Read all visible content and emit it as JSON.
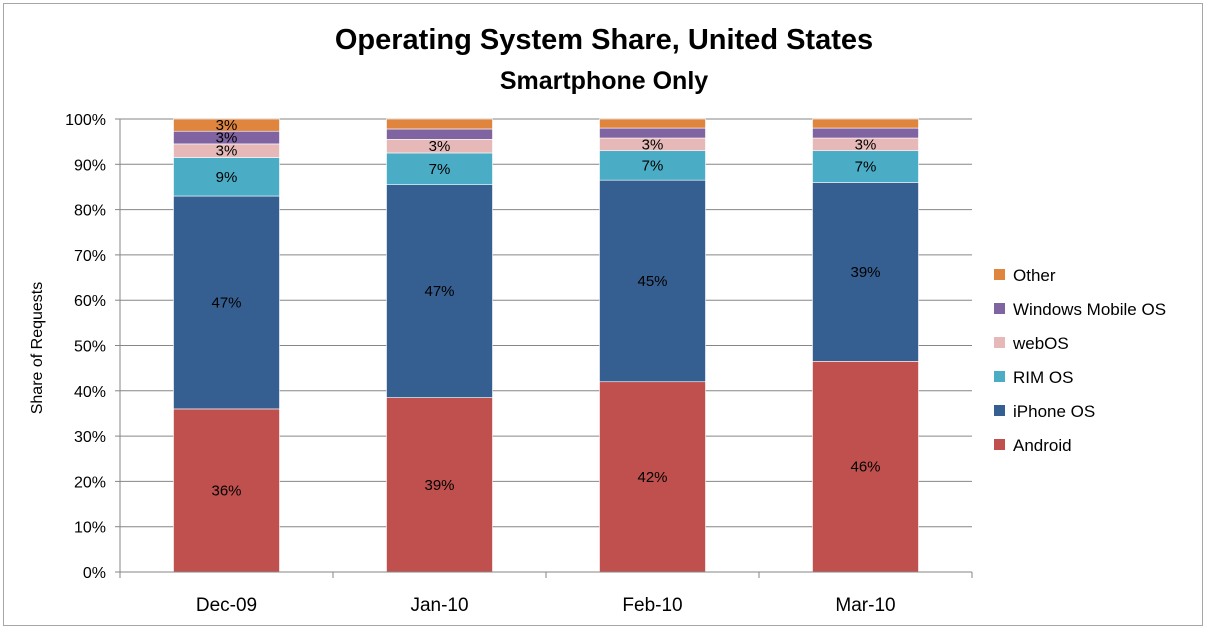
{
  "chart_data": {
    "type": "bar",
    "stacked": true,
    "normalized": true,
    "title": "Operating System Share, United States",
    "subtitle": "Smartphone Only",
    "ylabel": "Share of Requests",
    "xlabel": "",
    "ylim": [
      0,
      100
    ],
    "yticks": [
      "0%",
      "10%",
      "20%",
      "30%",
      "40%",
      "50%",
      "60%",
      "70%",
      "80%",
      "90%",
      "100%"
    ],
    "grid": true,
    "legend": "right",
    "categories": [
      "Dec-09",
      "Jan-10",
      "Feb-10",
      "Mar-10"
    ],
    "series": [
      {
        "name": "Android",
        "color": "#c0504d",
        "values": [
          36,
          38.5,
          42,
          46.5
        ],
        "labels": [
          "36%",
          "39%",
          "42%",
          "46%"
        ]
      },
      {
        "name": "iPhone OS",
        "color": "#365f91",
        "values": [
          47,
          47,
          44.5,
          39.5
        ],
        "labels": [
          "47%",
          "47%",
          "45%",
          "39%"
        ]
      },
      {
        "name": "RIM OS",
        "color": "#4bacc6",
        "values": [
          8.5,
          7,
          6.5,
          7
        ],
        "labels": [
          "9%",
          "7%",
          "7%",
          "7%"
        ]
      },
      {
        "name": "webOS",
        "color": "#e6b9b8",
        "values": [
          3,
          3,
          2.8,
          2.8
        ],
        "labels": [
          "3%",
          "3%",
          "3%",
          "3%"
        ]
      },
      {
        "name": "Windows Mobile OS",
        "color": "#8064a2",
        "values": [
          2.8,
          2.3,
          2.2,
          2.2
        ],
        "labels": [
          "3%",
          "",
          "",
          ""
        ]
      },
      {
        "name": "Other",
        "color": "#e0853d",
        "values": [
          2.7,
          2.2,
          2.0,
          2.0
        ],
        "labels": [
          "3%",
          "",
          "",
          ""
        ]
      }
    ]
  }
}
